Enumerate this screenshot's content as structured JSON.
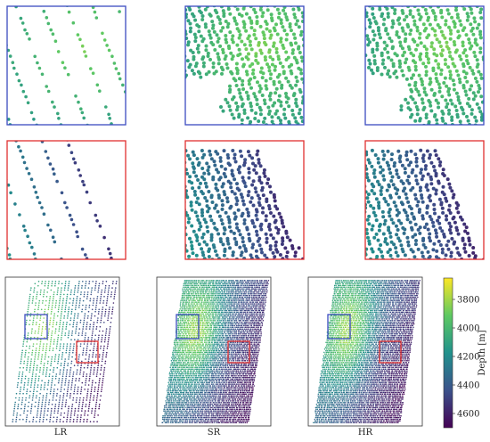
{
  "chart_data": {
    "type": "scatter",
    "title": "",
    "colormap": "viridis",
    "colorbar": {
      "label": "Depth [m]",
      "range": [
        3650,
        4700
      ],
      "ticks": [
        3800,
        4000,
        4200,
        4400,
        4600
      ],
      "tick_labels": [
        "3800",
        "4000",
        "4200",
        "4400",
        "4600"
      ]
    },
    "columns": [
      "LR",
      "SR",
      "HR"
    ],
    "rows": [
      {
        "kind": "zoom",
        "box_color": "#3b4cc0",
        "region": "blue"
      },
      {
        "kind": "zoom",
        "box_color": "#e03030",
        "region": "red"
      },
      {
        "kind": "overview"
      }
    ],
    "panels": [
      {
        "column": "LR",
        "row": "zoom-blue",
        "depth_range": [
          3850,
          4150
        ],
        "density": "sparse"
      },
      {
        "column": "SR",
        "row": "zoom-blue",
        "depth_range": [
          3850,
          4150
        ],
        "density": "dense"
      },
      {
        "column": "HR",
        "row": "zoom-blue",
        "depth_range": [
          3850,
          4150
        ],
        "density": "dense"
      },
      {
        "column": "LR",
        "row": "zoom-red",
        "depth_range": [
          4150,
          4650
        ],
        "density": "sparse"
      },
      {
        "column": "SR",
        "row": "zoom-red",
        "depth_range": [
          4150,
          4650
        ],
        "density": "dense"
      },
      {
        "column": "HR",
        "row": "zoom-red",
        "depth_range": [
          4150,
          4650
        ],
        "density": "dense"
      },
      {
        "column": "LR",
        "row": "overview",
        "depth_range": [
          3700,
          4650
        ],
        "density": "sparse"
      },
      {
        "column": "SR",
        "row": "overview",
        "depth_range": [
          3700,
          4650
        ],
        "density": "dense"
      },
      {
        "column": "HR",
        "row": "overview",
        "depth_range": [
          3700,
          4650
        ],
        "density": "dense"
      }
    ],
    "grid": false
  },
  "colors": {
    "blue_box": "#3b4cc0",
    "red_box": "#e03030",
    "frame": "#333333"
  }
}
